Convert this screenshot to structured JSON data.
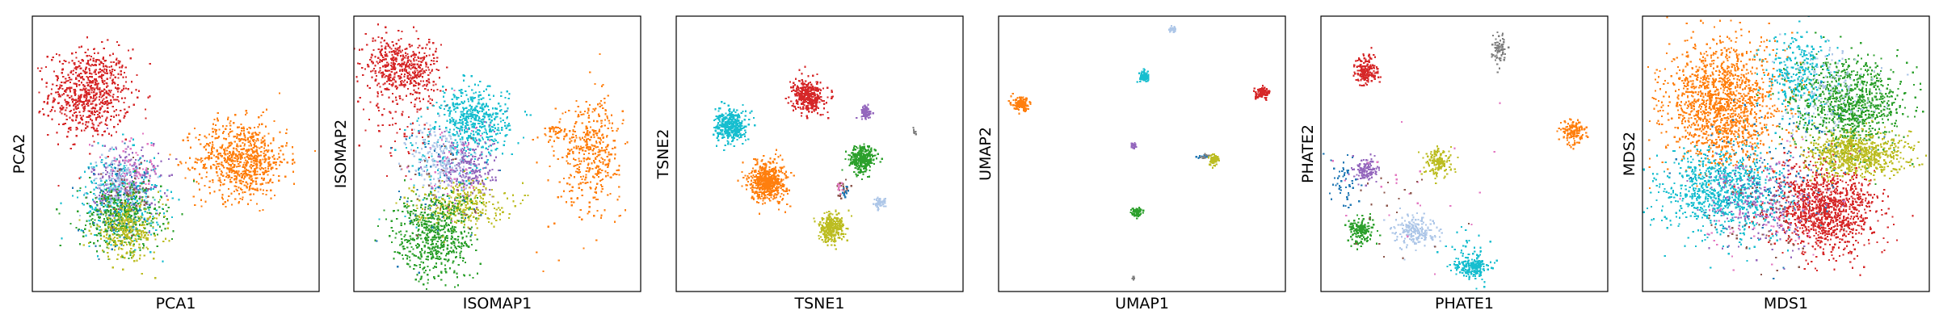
{
  "palette": {
    "blue": "#1f77b4",
    "orange": "#ff7f0e",
    "green": "#2ca02c",
    "red": "#d62728",
    "purple": "#9467bd",
    "brown": "#8c564b",
    "pink": "#e377c2",
    "gray": "#7f7f7f",
    "olive": "#bcbd22",
    "cyan": "#17becf",
    "lightblue": "#aec7e8"
  },
  "chart_data": [
    {
      "type": "scatter",
      "xlabel": "PCA1",
      "ylabel": "PCA2",
      "xlim": [
        0,
        100
      ],
      "ylim": [
        0,
        100
      ],
      "grid": false,
      "clusters": [
        {
          "color": "red",
          "cx": 20,
          "cy": 72,
          "sx": 7,
          "sy": 8,
          "n": 700
        },
        {
          "color": "orange",
          "cx": 73,
          "cy": 48,
          "sx": 8,
          "sy": 7,
          "n": 750
        },
        {
          "color": "cyan",
          "cx": 31,
          "cy": 34,
          "sx": 7,
          "sy": 8,
          "n": 350
        },
        {
          "color": "purple",
          "cx": 33,
          "cy": 40,
          "sx": 6,
          "sy": 7,
          "n": 250
        },
        {
          "color": "lightblue",
          "cx": 30,
          "cy": 38,
          "sx": 5,
          "sy": 6,
          "n": 150
        },
        {
          "color": "green",
          "cx": 31,
          "cy": 27,
          "sx": 7,
          "sy": 6,
          "n": 400
        },
        {
          "color": "olive",
          "cx": 33,
          "cy": 22,
          "sx": 6,
          "sy": 5,
          "n": 300
        },
        {
          "color": "pink",
          "cx": 35,
          "cy": 45,
          "sx": 5,
          "sy": 5,
          "n": 60
        },
        {
          "color": "blue",
          "cx": 30,
          "cy": 30,
          "sx": 6,
          "sy": 8,
          "n": 60
        },
        {
          "color": "brown",
          "cx": 33,
          "cy": 36,
          "sx": 5,
          "sy": 6,
          "n": 40
        }
      ]
    },
    {
      "type": "scatter",
      "xlabel": "ISOMAP1",
      "ylabel": "ISOMAP2",
      "xlim": [
        0,
        100
      ],
      "ylim": [
        0,
        100
      ],
      "grid": false,
      "clusters": [
        {
          "color": "red",
          "cx": 12,
          "cy": 82,
          "sx": 4,
          "sy": 5,
          "n": 250
        },
        {
          "color": "red",
          "cx": 22,
          "cy": 80,
          "sx": 4,
          "sy": 6,
          "n": 250
        },
        {
          "color": "red",
          "cx": 14,
          "cy": 60,
          "sx": 6,
          "sy": 10,
          "n": 60
        },
        {
          "color": "cyan",
          "cx": 42,
          "cy": 62,
          "sx": 6,
          "sy": 6,
          "n": 450
        },
        {
          "color": "cyan",
          "cx": 35,
          "cy": 50,
          "sx": 10,
          "sy": 12,
          "n": 120
        },
        {
          "color": "orange",
          "cx": 83,
          "cy": 52,
          "sx": 5,
          "sy": 9,
          "n": 350
        },
        {
          "color": "orange",
          "cx": 70,
          "cy": 58,
          "sx": 2,
          "sy": 2,
          "n": 40
        },
        {
          "color": "orange",
          "cx": 80,
          "cy": 40,
          "sx": 8,
          "sy": 14,
          "n": 60
        },
        {
          "color": "purple",
          "cx": 39,
          "cy": 45,
          "sx": 5,
          "sy": 6,
          "n": 250
        },
        {
          "color": "lightblue",
          "cx": 30,
          "cy": 48,
          "sx": 5,
          "sy": 7,
          "n": 200
        },
        {
          "color": "olive",
          "cx": 37,
          "cy": 32,
          "sx": 8,
          "sy": 4,
          "n": 300
        },
        {
          "color": "green",
          "cx": 28,
          "cy": 20,
          "sx": 7,
          "sy": 8,
          "n": 600
        },
        {
          "color": "blue",
          "cx": 30,
          "cy": 40,
          "sx": 10,
          "sy": 12,
          "n": 50
        },
        {
          "color": "pink",
          "cx": 35,
          "cy": 45,
          "sx": 8,
          "sy": 10,
          "n": 40
        },
        {
          "color": "brown",
          "cx": 30,
          "cy": 38,
          "sx": 8,
          "sy": 10,
          "n": 30
        }
      ]
    },
    {
      "type": "scatter",
      "xlabel": "TSNE1",
      "ylabel": "TSNE2",
      "xlim": [
        0,
        100
      ],
      "ylim": [
        0,
        100
      ],
      "grid": false,
      "clusters": [
        {
          "color": "red",
          "cx": 46,
          "cy": 71,
          "sx": 2.6,
          "sy": 2.8,
          "n": 400
        },
        {
          "color": "cyan",
          "cx": 19,
          "cy": 60,
          "sx": 2.6,
          "sy": 2.8,
          "n": 400
        },
        {
          "color": "orange",
          "cx": 32,
          "cy": 40,
          "sx": 3.2,
          "sy": 3.6,
          "n": 550
        },
        {
          "color": "purple",
          "cx": 66,
          "cy": 65,
          "sx": 1.0,
          "sy": 1.2,
          "n": 80
        },
        {
          "color": "green",
          "cx": 65,
          "cy": 48,
          "sx": 2.2,
          "sy": 2.5,
          "n": 300
        },
        {
          "color": "olive",
          "cx": 54,
          "cy": 23,
          "sx": 2.2,
          "sy": 2.6,
          "n": 300
        },
        {
          "color": "lightblue",
          "cx": 71,
          "cy": 32,
          "sx": 1.0,
          "sy": 1.0,
          "n": 60
        },
        {
          "color": "gray",
          "cx": 83,
          "cy": 58,
          "sx": 0.3,
          "sy": 0.4,
          "n": 8
        },
        {
          "color": "brown",
          "cx": 58,
          "cy": 37,
          "sx": 1.0,
          "sy": 1.8,
          "n": 20
        },
        {
          "color": "blue",
          "cx": 59,
          "cy": 36,
          "sx": 0.6,
          "sy": 1.2,
          "n": 12
        },
        {
          "color": "pink",
          "cx": 57,
          "cy": 38,
          "sx": 0.6,
          "sy": 1.0,
          "n": 10
        }
      ]
    },
    {
      "type": "scatter",
      "xlabel": "UMAP1",
      "ylabel": "UMAP2",
      "xlim": [
        0,
        100
      ],
      "ylim": [
        0,
        100
      ],
      "grid": false,
      "clusters": [
        {
          "color": "orange",
          "cx": 8,
          "cy": 68,
          "sx": 1.4,
          "sy": 1.2,
          "n": 150
        },
        {
          "color": "lightblue",
          "cx": 61,
          "cy": 95,
          "sx": 0.7,
          "sy": 0.5,
          "n": 30
        },
        {
          "color": "cyan",
          "cx": 51,
          "cy": 78,
          "sx": 0.9,
          "sy": 1.0,
          "n": 80
        },
        {
          "color": "red",
          "cx": 92,
          "cy": 72,
          "sx": 1.2,
          "sy": 1.0,
          "n": 100
        },
        {
          "color": "purple",
          "cx": 47,
          "cy": 53,
          "sx": 0.5,
          "sy": 0.6,
          "n": 20
        },
        {
          "color": "olive",
          "cx": 75,
          "cy": 48,
          "sx": 1.0,
          "sy": 1.0,
          "n": 80
        },
        {
          "color": "blue",
          "cx": 71,
          "cy": 49,
          "sx": 1.0,
          "sy": 0.3,
          "n": 15
        },
        {
          "color": "gray",
          "cx": 72,
          "cy": 49,
          "sx": 1.0,
          "sy": 0.3,
          "n": 10
        },
        {
          "color": "green",
          "cx": 48,
          "cy": 29,
          "sx": 0.9,
          "sy": 0.9,
          "n": 60
        },
        {
          "color": "gray",
          "cx": 47,
          "cy": 5,
          "sx": 0.3,
          "sy": 0.3,
          "n": 6
        }
      ]
    },
    {
      "type": "scatter",
      "xlabel": "PHATE1",
      "ylabel": "PHATE2",
      "xlim": [
        0,
        100
      ],
      "ylim": [
        0,
        100
      ],
      "grid": false,
      "clusters": [
        {
          "color": "red",
          "cx": 16,
          "cy": 80,
          "sx": 2.0,
          "sy": 2.6,
          "n": 180
        },
        {
          "color": "gray",
          "cx": 62,
          "cy": 88,
          "sx": 1.2,
          "sy": 3.0,
          "n": 80
        },
        {
          "color": "orange",
          "cx": 88,
          "cy": 58,
          "sx": 2.0,
          "sy": 2.0,
          "n": 140
        },
        {
          "color": "purple",
          "cx": 16,
          "cy": 44,
          "sx": 2.0,
          "sy": 2.2,
          "n": 130
        },
        {
          "color": "blue",
          "cx": 8,
          "cy": 40,
          "sx": 2.5,
          "sy": 5.0,
          "n": 50
        },
        {
          "color": "olive",
          "cx": 41,
          "cy": 47,
          "sx": 2.3,
          "sy": 2.5,
          "n": 150
        },
        {
          "color": "green",
          "cx": 14,
          "cy": 22,
          "sx": 2.2,
          "sy": 2.4,
          "n": 160
        },
        {
          "color": "lightblue",
          "cx": 33,
          "cy": 22,
          "sx": 3.5,
          "sy": 2.8,
          "n": 200
        },
        {
          "color": "cyan",
          "cx": 53,
          "cy": 9,
          "sx": 3.0,
          "sy": 2.0,
          "n": 200
        },
        {
          "color": "cyan",
          "cx": 50,
          "cy": 15,
          "sx": 4.0,
          "sy": 4.0,
          "n": 30
        },
        {
          "color": "pink",
          "cx": 30,
          "cy": 35,
          "sx": 15,
          "sy": 15,
          "n": 25
        },
        {
          "color": "brown",
          "cx": 25,
          "cy": 30,
          "sx": 10,
          "sy": 10,
          "n": 20
        }
      ]
    },
    {
      "type": "scatter",
      "xlabel": "MDS1",
      "ylabel": "MDS2",
      "xlim": [
        0,
        100
      ],
      "ylim": [
        0,
        100
      ],
      "grid": false,
      "clusters": [
        {
          "color": "orange",
          "cx": 28,
          "cy": 68,
          "sx": 10,
          "sy": 11,
          "n": 1400
        },
        {
          "color": "cyan",
          "cx": 28,
          "cy": 36,
          "sx": 11,
          "sy": 8,
          "n": 900
        },
        {
          "color": "cyan",
          "cx": 55,
          "cy": 78,
          "sx": 6,
          "sy": 8,
          "n": 300
        },
        {
          "color": "red",
          "cx": 64,
          "cy": 30,
          "sx": 9,
          "sy": 8,
          "n": 1100
        },
        {
          "color": "green",
          "cx": 72,
          "cy": 68,
          "sx": 9,
          "sy": 8,
          "n": 900
        },
        {
          "color": "olive",
          "cx": 75,
          "cy": 50,
          "sx": 9,
          "sy": 4,
          "n": 700
        },
        {
          "color": "purple",
          "cx": 42,
          "cy": 32,
          "sx": 10,
          "sy": 8,
          "n": 200
        },
        {
          "color": "lightblue",
          "cx": 65,
          "cy": 72,
          "sx": 8,
          "sy": 8,
          "n": 150
        },
        {
          "color": "blue",
          "cx": 45,
          "cy": 45,
          "sx": 14,
          "sy": 14,
          "n": 120
        },
        {
          "color": "pink",
          "cx": 40,
          "cy": 30,
          "sx": 12,
          "sy": 10,
          "n": 80
        },
        {
          "color": "brown",
          "cx": 42,
          "cy": 28,
          "sx": 12,
          "sy": 10,
          "n": 60
        }
      ]
    }
  ]
}
